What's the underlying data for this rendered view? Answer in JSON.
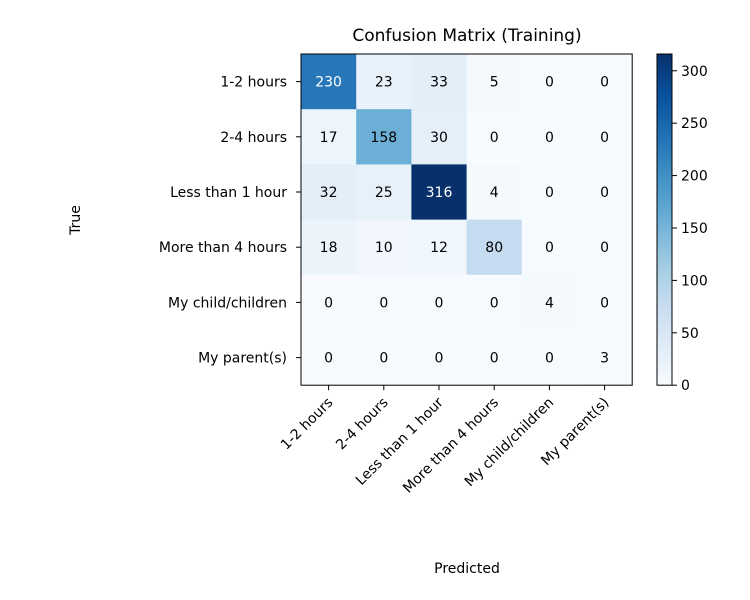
{
  "chart_data": {
    "type": "heatmap",
    "title": "Confusion Matrix (Training)",
    "xlabel": "Predicted",
    "ylabel": "True",
    "x_categories": [
      "1-2 hours",
      "2-4 hours",
      "Less than 1 hour",
      "More than 4 hours",
      "My child/children",
      "My parent(s)"
    ],
    "y_categories": [
      "1-2 hours",
      "2-4 hours",
      "Less than 1 hour",
      "More than 4 hours",
      "My child/children",
      "My parent(s)"
    ],
    "values": [
      [
        230,
        23,
        33,
        5,
        0,
        0
      ],
      [
        17,
        158,
        30,
        0,
        0,
        0
      ],
      [
        32,
        25,
        316,
        4,
        0,
        0
      ],
      [
        18,
        10,
        12,
        80,
        0,
        0
      ],
      [
        0,
        0,
        0,
        0,
        4,
        0
      ],
      [
        0,
        0,
        0,
        0,
        0,
        3
      ]
    ],
    "colorbar": {
      "min": 0,
      "max": 316,
      "ticks": [
        0,
        50,
        100,
        150,
        200,
        250,
        300
      ]
    },
    "colormap": "Blues",
    "colormap_stops": [
      "#f7fbff",
      "#deebf7",
      "#c6dbef",
      "#9ecae1",
      "#6baed6",
      "#4292c6",
      "#2171b5",
      "#08519c",
      "#08306b"
    ]
  }
}
